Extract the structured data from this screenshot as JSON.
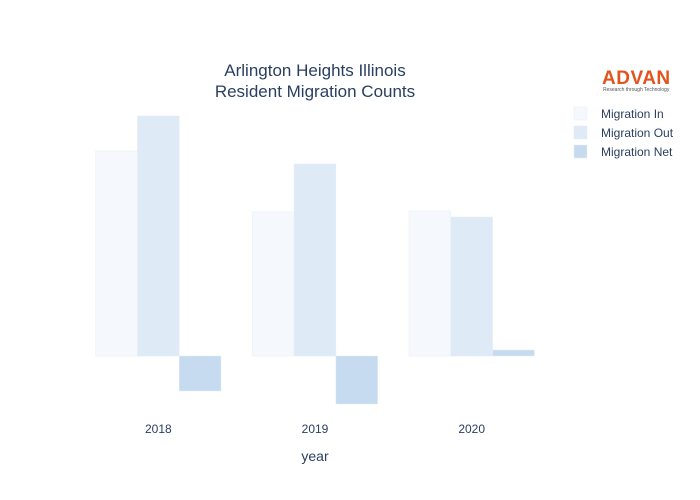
{
  "colors": {
    "migration_in": "#f5f9fd",
    "migration_out": "#deeaf6",
    "migration_net": "#c6dbef",
    "title": "#2a3f5f",
    "logo": "#e2541e"
  },
  "logo": {
    "name": "ADVAN",
    "tagline": "Research through Technology"
  },
  "chart_data": {
    "type": "bar",
    "title_lines": [
      "Arlington Heights Illinois",
      "Resident Migration Counts"
    ],
    "xlabel": "year",
    "ylabel": "",
    "categories": [
      "2018",
      "2019",
      "2020"
    ],
    "series": [
      {
        "name": "Migration In",
        "values": [
          2050,
          1440,
          1450
        ]
      },
      {
        "name": "Migration Out",
        "values": [
          2400,
          1920,
          1390
        ]
      },
      {
        "name": "Migration Net",
        "values": [
          -350,
          -480,
          60
        ]
      }
    ],
    "ylim": [
      -540,
      2460
    ],
    "show_yticks": false,
    "grid": false,
    "legend": "top-right"
  }
}
